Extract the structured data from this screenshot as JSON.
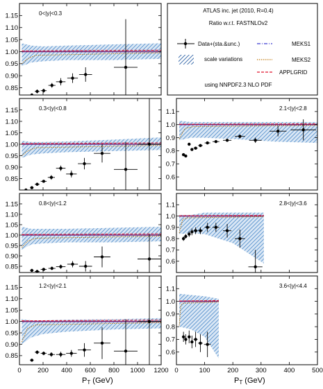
{
  "chart_data": {
    "type": "scatter",
    "title": "ATLAS inc. jet (2010, R=0.4)",
    "subtitle": "Ratio w.r.t. FASTNLOv2",
    "note": "using NNPDF2.3 NLO PDF",
    "xlabel_main": "P",
    "xlabel_sub": "T",
    "xlabel_unit": " (GeV)",
    "legend": {
      "data": "Data+(sta.&unc.)",
      "scale": "scale variations",
      "meks1": "MEKS1",
      "meks2": "MEKS2",
      "applgrid": "APPLGRID"
    },
    "colors": {
      "meks1": "#3a3ad0",
      "meks2": "#c07a10",
      "applgrid": "#e0102a",
      "band": "#3a7fc4",
      "ref": "#7a2a7a"
    },
    "panels": [
      {
        "id": "p0",
        "label": "0<|y|<0.3",
        "column": "left",
        "xlim": [
          0,
          1200
        ],
        "ylim": [
          0.82,
          1.2
        ],
        "yticks": [
          "0.85",
          "0.90",
          "0.95",
          "1.00",
          "1.05",
          "1.10",
          "1.15"
        ],
        "data": [
          {
            "x": 105,
            "y": 0.82,
            "ex": 15,
            "ey": 0.005
          },
          {
            "x": 150,
            "y": 0.835,
            "ex": 20,
            "ey": 0.008
          },
          {
            "x": 205,
            "y": 0.838,
            "ex": 25,
            "ey": 0.008
          },
          {
            "x": 275,
            "y": 0.86,
            "ex": 30,
            "ey": 0.01
          },
          {
            "x": 350,
            "y": 0.875,
            "ex": 40,
            "ey": 0.015
          },
          {
            "x": 450,
            "y": 0.89,
            "ex": 45,
            "ey": 0.02
          },
          {
            "x": 560,
            "y": 0.905,
            "ex": 55,
            "ey": 0.03
          },
          {
            "x": 900,
            "y": 0.935,
            "ex": 100,
            "ey": 0.2
          }
        ],
        "band": {
          "x": [
            20,
            100,
            200,
            400,
            800,
            1200
          ],
          "hi": [
            1.035,
            1.025,
            1.022,
            1.025,
            1.03,
            1.035
          ],
          "lo": [
            0.94,
            0.955,
            0.96,
            0.965,
            0.965,
            0.97
          ]
        }
      },
      {
        "id": "p1",
        "label": "0.3<|y|<0.8",
        "column": "left",
        "xlim": [
          0,
          1200
        ],
        "ylim": [
          0.8,
          1.2
        ],
        "yticks": [
          "0.85",
          "0.90",
          "0.95",
          "1.00",
          "1.05",
          "1.10",
          "1.15"
        ],
        "data": [
          {
            "x": 55,
            "y": 0.8,
            "ex": 10,
            "ey": 0.005
          },
          {
            "x": 105,
            "y": 0.81,
            "ex": 15,
            "ey": 0.005
          },
          {
            "x": 150,
            "y": 0.825,
            "ex": 20,
            "ey": 0.005
          },
          {
            "x": 205,
            "y": 0.838,
            "ex": 25,
            "ey": 0.006
          },
          {
            "x": 270,
            "y": 0.855,
            "ex": 30,
            "ey": 0.01
          },
          {
            "x": 350,
            "y": 0.895,
            "ex": 40,
            "ey": 0.012
          },
          {
            "x": 440,
            "y": 0.87,
            "ex": 45,
            "ey": 0.015
          },
          {
            "x": 550,
            "y": 0.915,
            "ex": 55,
            "ey": 0.025
          },
          {
            "x": 700,
            "y": 0.96,
            "ex": 70,
            "ey": 0.04
          },
          {
            "x": 900,
            "y": 0.89,
            "ex": 100,
            "ey": 0.12
          },
          {
            "x": 1100,
            "y": 1.0,
            "ex": 100,
            "ey": 0.3
          }
        ],
        "band": {
          "x": [
            20,
            100,
            200,
            400,
            800,
            1200
          ],
          "hi": [
            1.015,
            1.01,
            1.01,
            1.012,
            1.02,
            1.03
          ],
          "lo": [
            0.94,
            0.955,
            0.96,
            0.965,
            0.97,
            0.975
          ]
        }
      },
      {
        "id": "p2",
        "label": "0.8<|y|<1.2",
        "column": "left",
        "xlim": [
          0,
          1200
        ],
        "ylim": [
          0.82,
          1.2
        ],
        "yticks": [
          "0.85",
          "0.90",
          "0.95",
          "1.00",
          "1.05",
          "1.10",
          "1.15"
        ],
        "data": [
          {
            "x": 105,
            "y": 0.83,
            "ex": 15,
            "ey": 0.005
          },
          {
            "x": 150,
            "y": 0.825,
            "ex": 20,
            "ey": 0.005
          },
          {
            "x": 205,
            "y": 0.835,
            "ex": 25,
            "ey": 0.006
          },
          {
            "x": 275,
            "y": 0.84,
            "ex": 30,
            "ey": 0.008
          },
          {
            "x": 350,
            "y": 0.848,
            "ex": 40,
            "ey": 0.01
          },
          {
            "x": 450,
            "y": 0.86,
            "ex": 45,
            "ey": 0.015
          },
          {
            "x": 560,
            "y": 0.85,
            "ex": 55,
            "ey": 0.025
          },
          {
            "x": 700,
            "y": 0.895,
            "ex": 70,
            "ey": 0.05
          },
          {
            "x": 1100,
            "y": 0.885,
            "ex": 100,
            "ey": 0.12
          }
        ],
        "band": {
          "x": [
            20,
            100,
            200,
            400,
            800,
            1200
          ],
          "hi": [
            1.04,
            1.03,
            1.03,
            1.03,
            1.035,
            1.04
          ],
          "lo": [
            0.93,
            0.955,
            0.96,
            0.965,
            0.965,
            0.97
          ]
        }
      },
      {
        "id": "p3",
        "label": "1.2<|y|<2.1",
        "column": "left",
        "xlim": [
          0,
          1200
        ],
        "ylim": [
          0.81,
          1.2
        ],
        "yticks": [
          "0.85",
          "0.90",
          "0.95",
          "1.00",
          "1.05",
          "1.10",
          "1.15"
        ],
        "data": [
          {
            "x": 105,
            "y": 0.83,
            "ex": 15,
            "ey": 0.005
          },
          {
            "x": 150,
            "y": 0.865,
            "ex": 20,
            "ey": 0.008
          },
          {
            "x": 205,
            "y": 0.86,
            "ex": 25,
            "ey": 0.008
          },
          {
            "x": 270,
            "y": 0.855,
            "ex": 30,
            "ey": 0.01
          },
          {
            "x": 350,
            "y": 0.855,
            "ex": 40,
            "ey": 0.012
          },
          {
            "x": 440,
            "y": 0.86,
            "ex": 45,
            "ey": 0.015
          },
          {
            "x": 550,
            "y": 0.875,
            "ex": 55,
            "ey": 0.03
          },
          {
            "x": 700,
            "y": 0.905,
            "ex": 70,
            "ey": 0.07
          },
          {
            "x": 900,
            "y": 0.87,
            "ex": 100,
            "ey": 0.14
          },
          {
            "x": 1100,
            "y": 1.0,
            "ex": 100,
            "ey": 0.3
          }
        ],
        "band": {
          "x": [
            20,
            100,
            200,
            400,
            800,
            1200
          ],
          "hi": [
            1.01,
            1.005,
            1.005,
            1.008,
            1.01,
            1.015
          ],
          "lo": [
            0.9,
            0.93,
            0.945,
            0.955,
            0.965,
            0.97
          ]
        }
      },
      {
        "id": "p4",
        "label": "2.1<|y|<2.8",
        "column": "right",
        "xlim": [
          0,
          500
        ],
        "ylim": [
          0.5,
          1.2
        ],
        "yticks": [
          "0.6",
          "0.7",
          "0.8",
          "0.9",
          "1.0",
          "1.1"
        ],
        "data": [
          {
            "x": 25,
            "y": 0.77,
            "ex": 4,
            "ey": 0.005
          },
          {
            "x": 33,
            "y": 0.76,
            "ex": 4,
            "ey": 0.005
          },
          {
            "x": 45,
            "y": 0.85,
            "ex": 5,
            "ey": 0.006
          },
          {
            "x": 55,
            "y": 0.81,
            "ex": 5,
            "ey": 0.006
          },
          {
            "x": 68,
            "y": 0.82,
            "ex": 7,
            "ey": 0.008
          },
          {
            "x": 85,
            "y": 0.84,
            "ex": 8,
            "ey": 0.008
          },
          {
            "x": 110,
            "y": 0.86,
            "ex": 10,
            "ey": 0.01
          },
          {
            "x": 140,
            "y": 0.87,
            "ex": 12,
            "ey": 0.01
          },
          {
            "x": 180,
            "y": 0.88,
            "ex": 15,
            "ey": 0.01
          },
          {
            "x": 225,
            "y": 0.91,
            "ex": 18,
            "ey": 0.015
          },
          {
            "x": 280,
            "y": 0.88,
            "ex": 22,
            "ey": 0.02
          },
          {
            "x": 360,
            "y": 0.95,
            "ex": 30,
            "ey": 0.04
          },
          {
            "x": 450,
            "y": 0.96,
            "ex": 45,
            "ey": 0.08
          }
        ],
        "band": {
          "x": [
            10,
            50,
            100,
            200,
            350,
            500
          ],
          "hi": [
            1.03,
            1.02,
            1.02,
            1.02,
            1.02,
            1.02
          ],
          "lo": [
            0.88,
            0.9,
            0.9,
            0.89,
            0.87,
            0.86
          ]
        }
      },
      {
        "id": "p5",
        "label": "2.8<|y|<3.6",
        "column": "right",
        "xlim": [
          0,
          500
        ],
        "ylim": [
          0.5,
          1.2
        ],
        "yticks": [
          "0.6",
          "0.7",
          "0.8",
          "0.9",
          "1.0",
          "1.1"
        ],
        "data": [
          {
            "x": 25,
            "y": 0.8,
            "ex": 4,
            "ey": 0.02
          },
          {
            "x": 33,
            "y": 0.82,
            "ex": 4,
            "ey": 0.02
          },
          {
            "x": 45,
            "y": 0.84,
            "ex": 5,
            "ey": 0.025
          },
          {
            "x": 55,
            "y": 0.86,
            "ex": 5,
            "ey": 0.03
          },
          {
            "x": 68,
            "y": 0.87,
            "ex": 7,
            "ey": 0.03
          },
          {
            "x": 85,
            "y": 0.87,
            "ex": 8,
            "ey": 0.03
          },
          {
            "x": 110,
            "y": 0.9,
            "ex": 10,
            "ey": 0.04
          },
          {
            "x": 140,
            "y": 0.9,
            "ex": 12,
            "ey": 0.04
          },
          {
            "x": 180,
            "y": 0.87,
            "ex": 15,
            "ey": 0.06
          },
          {
            "x": 225,
            "y": 0.8,
            "ex": 18,
            "ey": 0.08
          },
          {
            "x": 280,
            "y": 0.55,
            "ex": 25,
            "ey": 0.15
          }
        ],
        "band": {
          "x": [
            10,
            50,
            100,
            200,
            310
          ],
          "hi": [
            1.01,
            1.01,
            1.03,
            1.03,
            1.03
          ],
          "lo": [
            0.84,
            0.85,
            0.84,
            0.76,
            0.58
          ]
        }
      },
      {
        "id": "p6",
        "label": "3.6<|y|<4.4",
        "column": "right",
        "xlim": [
          0,
          500
        ],
        "ylim": [
          0.5,
          1.2
        ],
        "yticks": [
          "0.6",
          "0.7",
          "0.8",
          "0.9",
          "1.0",
          "1.1"
        ],
        "data": [
          {
            "x": 25,
            "y": 0.72,
            "ex": 4,
            "ey": 0.04
          },
          {
            "x": 33,
            "y": 0.7,
            "ex": 4,
            "ey": 0.04
          },
          {
            "x": 45,
            "y": 0.72,
            "ex": 5,
            "ey": 0.05
          },
          {
            "x": 55,
            "y": 0.68,
            "ex": 5,
            "ey": 0.05
          },
          {
            "x": 68,
            "y": 0.7,
            "ex": 7,
            "ey": 0.06
          },
          {
            "x": 85,
            "y": 0.67,
            "ex": 8,
            "ey": 0.07
          },
          {
            "x": 110,
            "y": 0.66,
            "ex": 12,
            "ey": 0.1
          }
        ],
        "band": {
          "x": [
            10,
            50,
            100,
            150
          ],
          "hi": [
            1.06,
            1.05,
            1.04,
            1.02
          ],
          "lo": [
            0.8,
            0.78,
            0.72,
            0.55
          ]
        }
      }
    ],
    "xticks_left": [
      "0",
      "200",
      "400",
      "600",
      "800",
      "1000",
      "1200"
    ],
    "xticks_right": [
      "0",
      "100",
      "200",
      "300",
      "400",
      "500"
    ]
  }
}
